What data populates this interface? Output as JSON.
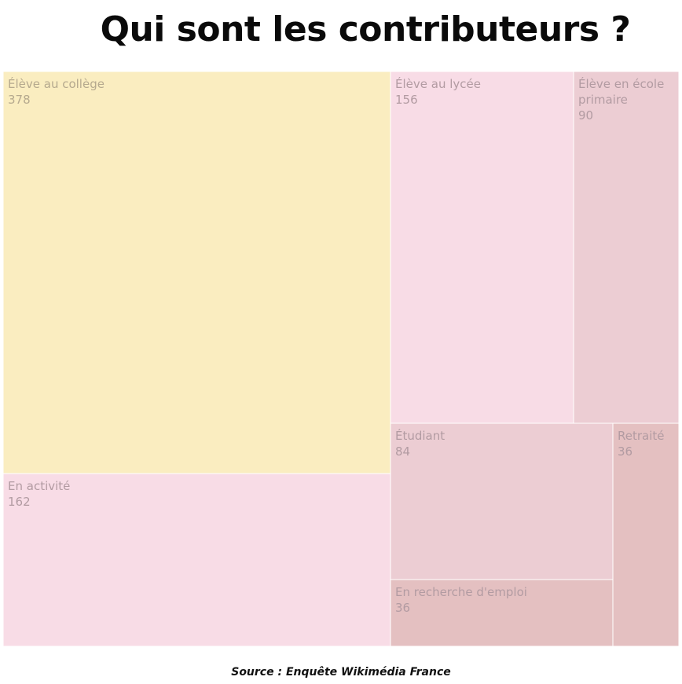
{
  "title": "Qui sont les contributeurs ?",
  "source": "Source : Enquête Wikimédia France",
  "colors": {
    "college": "#faedc0",
    "pink_light": "#f8dce6",
    "pink_mid": "#eccdd3",
    "pink_dark": "#e4c0c1",
    "label_college": "#b5a98e",
    "label_pink": "#b29ba2",
    "border": "#ffffff"
  },
  "chart_data": {
    "type": "treemap",
    "title": "Qui sont les contributeurs ?",
    "items": [
      {
        "label": "Élève au collège",
        "value": 378,
        "color": "#faedc0"
      },
      {
        "label": "En activité",
        "value": 162,
        "color": "#f8dce6"
      },
      {
        "label": "Élève au lycée",
        "value": 156,
        "color": "#f8dce6"
      },
      {
        "label": "Élève en école primaire",
        "value": 90,
        "color": "#eccdd3"
      },
      {
        "label": "Étudiant",
        "value": 84,
        "color": "#eccdd3"
      },
      {
        "label": "En recherche d'emploi",
        "value": 36,
        "color": "#e4c0c1"
      },
      {
        "label": "Retraité",
        "value": 36,
        "color": "#e4c0c1"
      }
    ]
  }
}
